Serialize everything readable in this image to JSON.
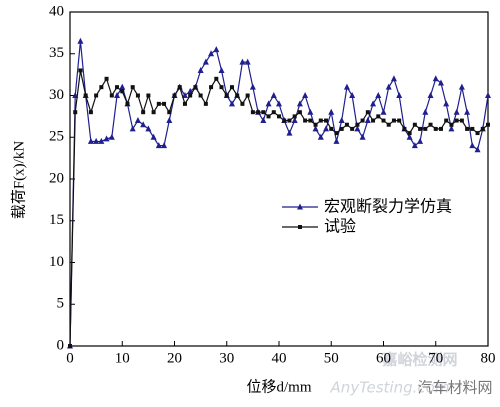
{
  "chart_data": {
    "type": "line",
    "xlabel": "位移d/mm",
    "ylabel": "载荷F(x)/kN",
    "x": [
      0,
      1,
      2,
      3,
      4,
      5,
      6,
      7,
      8,
      9,
      10,
      11,
      12,
      13,
      14,
      15,
      16,
      17,
      18,
      19,
      20,
      21,
      22,
      23,
      24,
      25,
      26,
      27,
      28,
      29,
      30,
      31,
      32,
      33,
      34,
      35,
      36,
      37,
      38,
      39,
      40,
      41,
      42,
      43,
      44,
      45,
      46,
      47,
      48,
      49,
      50,
      51,
      52,
      53,
      54,
      55,
      56,
      57,
      58,
      59,
      60,
      61,
      62,
      63,
      64,
      65,
      66,
      67,
      68,
      69,
      70,
      71,
      72,
      73,
      74,
      75,
      76,
      77,
      78,
      79,
      80
    ],
    "series": [
      {
        "name": "宏观断裂力学仿真",
        "color": "#1f1f8f",
        "marker": "triangle",
        "values": [
          0,
          30,
          36.5,
          30,
          24.5,
          24.5,
          24.5,
          24.8,
          25,
          30,
          31,
          29,
          26,
          27,
          26.5,
          26,
          25,
          24,
          24,
          27,
          30,
          31,
          30,
          30.5,
          31,
          33,
          34,
          35,
          35.5,
          33,
          30,
          29,
          30,
          34,
          34,
          31,
          28,
          27,
          29,
          30,
          29,
          27,
          25.5,
          27,
          29,
          30,
          28,
          26,
          25,
          26,
          28,
          24.5,
          27,
          31,
          30,
          26,
          25,
          27,
          29,
          30,
          28,
          31,
          32,
          30,
          26,
          25,
          24,
          24.5,
          28,
          30,
          32,
          31.5,
          29,
          26,
          28,
          31,
          28,
          24,
          23.5,
          26,
          30
        ]
      },
      {
        "name": "试验",
        "color": "#111111",
        "marker": "square",
        "values": [
          0,
          28,
          33,
          30,
          28,
          30,
          31,
          32,
          30,
          31,
          30.5,
          29,
          31,
          30,
          28,
          30,
          28,
          29,
          29,
          28,
          30,
          31,
          29,
          30,
          31,
          30,
          29,
          31,
          32,
          31,
          30,
          31,
          30,
          29,
          30,
          28,
          28,
          28,
          27.5,
          28,
          27.5,
          27,
          27,
          27.5,
          28,
          27,
          27,
          26.5,
          27,
          27,
          26,
          25.5,
          26,
          26.5,
          26,
          26.5,
          27,
          28,
          27,
          27.5,
          27,
          26.5,
          27,
          27,
          26,
          25.5,
          26.5,
          26,
          26,
          26.5,
          26,
          26,
          27,
          26.5,
          27,
          27,
          26,
          26,
          25.5,
          26,
          26.5
        ]
      }
    ],
    "xlim": [
      0,
      80
    ],
    "ylim": [
      0,
      40
    ],
    "xticks": [
      0,
      10,
      20,
      30,
      40,
      50,
      60,
      70,
      80
    ],
    "yticks": [
      0,
      5,
      10,
      15,
      20,
      25,
      30,
      35,
      40
    ],
    "legend_position": "right",
    "annotations": [
      "嘉峪检测网",
      "AnyTesting.com",
      "汽车材料网"
    ]
  }
}
